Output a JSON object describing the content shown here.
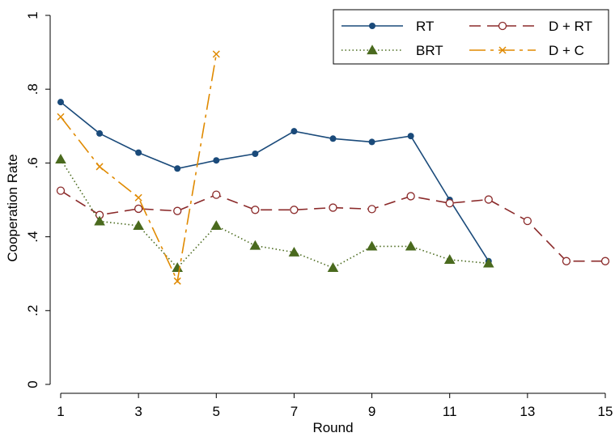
{
  "chart_data": {
    "type": "line",
    "title": "",
    "xlabel": "Round",
    "ylabel": "Cooperation Rate",
    "xlim": [
      1,
      15
    ],
    "ylim": [
      0,
      1
    ],
    "x_ticks": [
      1,
      3,
      5,
      7,
      9,
      11,
      13,
      15
    ],
    "y_ticks": [
      0,
      0.2,
      0.4,
      0.6,
      0.8,
      1
    ],
    "y_tick_labels": [
      "0",
      ".2",
      ".4",
      ".6",
      ".8",
      "1"
    ],
    "grid": false,
    "legend_position": "top-right",
    "series": [
      {
        "name": "RT",
        "color": "#1a4a7a",
        "marker": "filled-circle",
        "line_style": "solid",
        "x": [
          1,
          2,
          3,
          4,
          5,
          6,
          7,
          8,
          9,
          10,
          11,
          12
        ],
        "y": [
          0.765,
          0.68,
          0.628,
          0.585,
          0.607,
          0.625,
          0.686,
          0.666,
          0.657,
          0.673,
          0.5,
          0.334
        ]
      },
      {
        "name": "D + RT",
        "color": "#8b2a2a",
        "marker": "hollow-circle",
        "line_style": "dashed",
        "x": [
          1,
          2,
          3,
          4,
          5,
          6,
          7,
          8,
          9,
          10,
          11,
          12,
          13,
          14,
          15
        ],
        "y": [
          0.525,
          0.459,
          0.476,
          0.47,
          0.514,
          0.473,
          0.473,
          0.479,
          0.475,
          0.51,
          0.491,
          0.501,
          0.443,
          0.334,
          0.334
        ]
      },
      {
        "name": "BRT",
        "color": "#4a6a1e",
        "marker": "filled-triangle",
        "line_style": "dotted",
        "x": [
          1,
          2,
          3,
          4,
          5,
          6,
          7,
          8,
          9,
          10,
          11,
          12
        ],
        "y": [
          0.61,
          0.442,
          0.43,
          0.316,
          0.43,
          0.376,
          0.358,
          0.316,
          0.374,
          0.374,
          0.338,
          0.328
        ]
      },
      {
        "name": "D + C",
        "color": "#e08a00",
        "marker": "x",
        "line_style": "long-dash-dot",
        "x": [
          1,
          2,
          3,
          4,
          5
        ],
        "y": [
          0.725,
          0.59,
          0.506,
          0.28,
          0.895
        ]
      }
    ]
  }
}
